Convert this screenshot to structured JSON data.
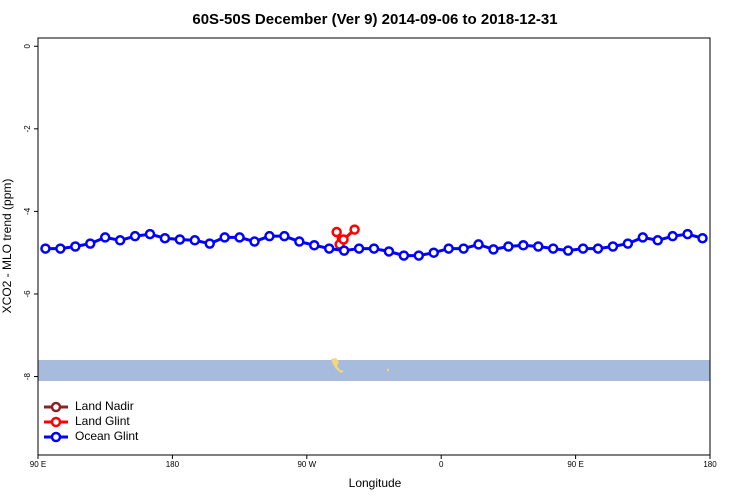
{
  "chart_data": {
    "type": "line",
    "title": "60S-50S December (Ver 9)   2014-09-06 to 2018-12-31",
    "x_label": "Longitude",
    "y_label": "XCO2 - MLO trend (ppm)",
    "xlim": [
      90,
      540
    ],
    "xticks": [
      {
        "value": 90,
        "label": "90 E"
      },
      {
        "value": 180,
        "label": "180"
      },
      {
        "value": 270,
        "label": "90 W"
      },
      {
        "value": 360,
        "label": "0"
      },
      {
        "value": 450,
        "label": "90 E"
      },
      {
        "value": 540,
        "label": "180"
      }
    ],
    "ylim": [
      -9.9,
      0.2
    ],
    "yticks": [
      0,
      -2,
      -4,
      -6,
      -8
    ],
    "legend": "bottom-left",
    "series": [
      {
        "name": "Land Nadir",
        "color": "#8b2323",
        "x": [],
        "values": []
      },
      {
        "name": "Land Glint",
        "color": "#ff0000",
        "x": [
          290,
          292,
          294.6,
          302
        ],
        "values": [
          -4.5,
          -4.8,
          -4.68,
          -4.44
        ]
      },
      {
        "name": "Ocean Glint",
        "color": "#0000ff",
        "x": [
          95,
          105,
          115,
          125,
          135,
          145,
          155,
          165,
          175,
          185,
          195,
          205,
          215,
          225,
          235,
          245,
          255,
          265,
          275,
          285,
          295,
          305,
          315,
          325,
          335,
          345,
          355,
          365,
          375,
          385,
          395,
          405,
          415,
          425,
          435,
          445,
          455,
          465,
          475,
          485,
          495,
          505,
          515,
          525,
          535
        ],
        "values": [
          -4.9,
          -4.9,
          -4.85,
          -4.78,
          -4.63,
          -4.7,
          -4.6,
          -4.55,
          -4.65,
          -4.68,
          -4.7,
          -4.78,
          -4.63,
          -4.63,
          -4.73,
          -4.6,
          -4.6,
          -4.73,
          -4.82,
          -4.9,
          -4.95,
          -4.9,
          -4.9,
          -4.97,
          -5.07,
          -5.07,
          -5.0,
          -4.9,
          -4.9,
          -4.8,
          -4.92,
          -4.85,
          -4.82,
          -4.85,
          -4.9,
          -4.95,
          -4.9,
          -4.9,
          -4.85,
          -4.78,
          -4.63,
          -4.7,
          -4.6,
          -4.55,
          -4.65
        ]
      }
    ]
  }
}
